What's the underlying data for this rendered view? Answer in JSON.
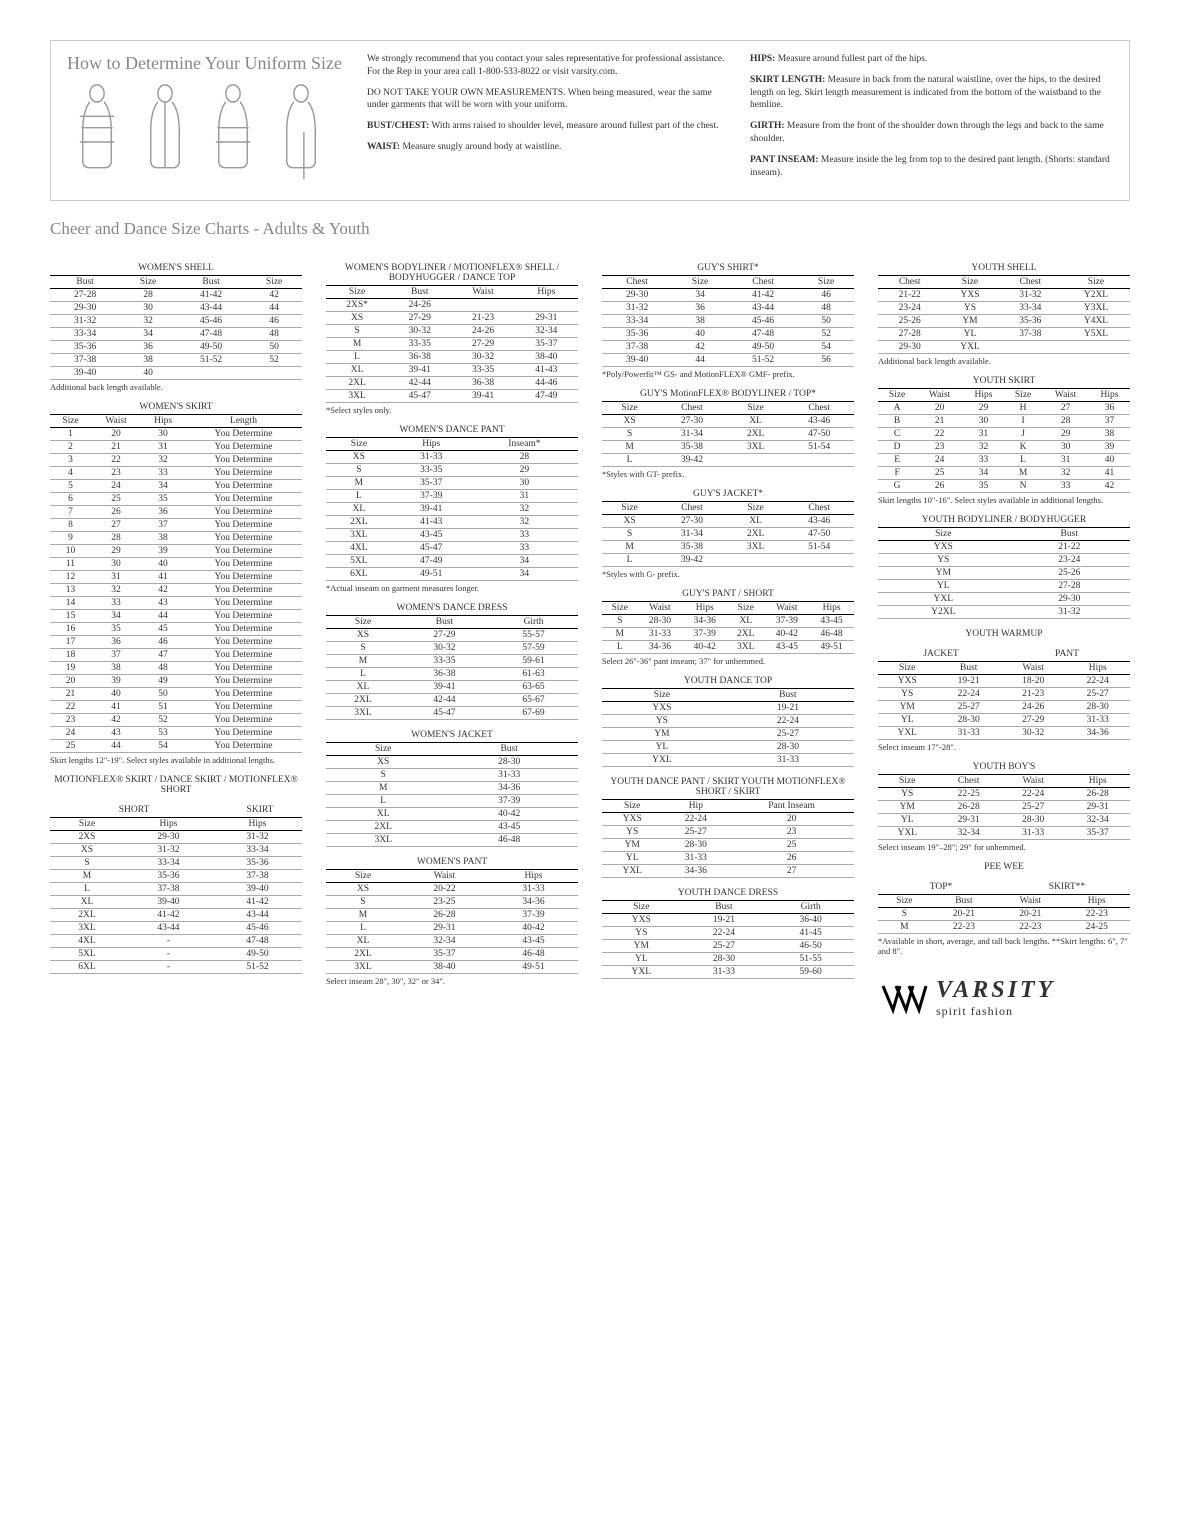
{
  "header": {
    "title": "How to Determine Your Uniform Size",
    "intro1": "We strongly recommend that you contact your sales representative for professional assistance. For the Rep in your area call 1-800-533-8022 or visit varsity.com.",
    "intro2": "DO NOT TAKE YOUR OWN MEASUREMENTS. When being measured, wear the same under garments that will be worn with your uniform.",
    "bust_label": "BUST/CHEST:",
    "bust": "With arms raised to shoulder level, measure around fullest part of the chest.",
    "waist_label": "WAIST:",
    "waist": "Measure snugly around body at waistline.",
    "hips_label": "HIPS:",
    "hips": "Measure around fullest part of the hips.",
    "skirt_label": "SKIRT LENGTH:",
    "skirt": "Measure in back from the natural waistline, over the hips, to the desired length on leg. Skirt length measurement is indicated from the bottom of the waistband to the hemline.",
    "girth_label": "GIRTH:",
    "girth": "Measure from the front of the shoulder down through the legs and back to the same shoulder.",
    "pant_label": "PANT INSEAM:",
    "pant": "Measure inside the leg from top to the desired pant length. (Shorts: standard inseam)."
  },
  "section_title": "Cheer and Dance Size Charts - Adults & Youth",
  "tables": {
    "womens_shell": {
      "title": "WOMEN'S SHELL",
      "cols": [
        "Bust",
        "Size",
        "Bust",
        "Size"
      ],
      "rows": [
        [
          "27-28",
          "28",
          "41-42",
          "42"
        ],
        [
          "29-30",
          "30",
          "43-44",
          "44"
        ],
        [
          "31-32",
          "32",
          "45-46",
          "46"
        ],
        [
          "33-34",
          "34",
          "47-48",
          "48"
        ],
        [
          "35-36",
          "36",
          "49-50",
          "50"
        ],
        [
          "37-38",
          "38",
          "51-52",
          "52"
        ],
        [
          "39-40",
          "40",
          "",
          ""
        ]
      ],
      "note": "Additional back length available."
    },
    "womens_skirt": {
      "title": "WOMEN'S SKIRT",
      "cols": [
        "Size",
        "Waist",
        "Hips",
        "Length"
      ],
      "rows": [
        [
          "1",
          "20",
          "30",
          "You Determine"
        ],
        [
          "2",
          "21",
          "31",
          "You Determine"
        ],
        [
          "3",
          "22",
          "32",
          "You Determine"
        ],
        [
          "4",
          "23",
          "33",
          "You Determine"
        ],
        [
          "5",
          "24",
          "34",
          "You Determine"
        ],
        [
          "6",
          "25",
          "35",
          "You Determine"
        ],
        [
          "7",
          "26",
          "36",
          "You Determine"
        ],
        [
          "8",
          "27",
          "37",
          "You Determine"
        ],
        [
          "9",
          "28",
          "38",
          "You Determine"
        ],
        [
          "10",
          "29",
          "39",
          "You Determine"
        ],
        [
          "11",
          "30",
          "40",
          "You Determine"
        ],
        [
          "12",
          "31",
          "41",
          "You Determine"
        ],
        [
          "13",
          "32",
          "42",
          "You Determine"
        ],
        [
          "14",
          "33",
          "43",
          "You Determine"
        ],
        [
          "15",
          "34",
          "44",
          "You Determine"
        ],
        [
          "16",
          "35",
          "45",
          "You Determine"
        ],
        [
          "17",
          "36",
          "46",
          "You Determine"
        ],
        [
          "18",
          "37",
          "47",
          "You Determine"
        ],
        [
          "19",
          "38",
          "48",
          "You Determine"
        ],
        [
          "20",
          "39",
          "49",
          "You Determine"
        ],
        [
          "21",
          "40",
          "50",
          "You Determine"
        ],
        [
          "22",
          "41",
          "51",
          "You Determine"
        ],
        [
          "23",
          "42",
          "52",
          "You Determine"
        ],
        [
          "24",
          "43",
          "53",
          "You Determine"
        ],
        [
          "25",
          "44",
          "54",
          "You Determine"
        ]
      ],
      "note": "Skirt lengths 12\"-19\". Select styles available in additional lengths."
    },
    "motionflex_skirt": {
      "title": "MOTIONFLEX® SKIRT / DANCE SKIRT / MOTIONFLEX® SHORT",
      "sub_left": "SHORT",
      "sub_right": "SKIRT",
      "cols": [
        "Size",
        "Hips",
        "Hips"
      ],
      "rows": [
        [
          "2XS",
          "29-30",
          "31-32"
        ],
        [
          "XS",
          "31-32",
          "33-34"
        ],
        [
          "S",
          "33-34",
          "35-36"
        ],
        [
          "M",
          "35-36",
          "37-38"
        ],
        [
          "L",
          "37-38",
          "39-40"
        ],
        [
          "XL",
          "39-40",
          "41-42"
        ],
        [
          "2XL",
          "41-42",
          "43-44"
        ],
        [
          "3XL",
          "43-44",
          "45-46"
        ],
        [
          "4XL",
          "-",
          "47-48"
        ],
        [
          "5XL",
          "-",
          "49-50"
        ],
        [
          "6XL",
          "-",
          "51-52"
        ]
      ]
    },
    "womens_bodyliner": {
      "title": "WOMEN'S BODYLINER / MOTIONFLEX® SHELL / BODYHUGGER / DANCE TOP",
      "cols": [
        "Size",
        "Bust",
        "Waist",
        "Hips"
      ],
      "rows": [
        [
          "2XS*",
          "24-26",
          "",
          ""
        ],
        [
          "XS",
          "27-29",
          "21-23",
          "29-31"
        ],
        [
          "S",
          "30-32",
          "24-26",
          "32-34"
        ],
        [
          "M",
          "33-35",
          "27-29",
          "35-37"
        ],
        [
          "L",
          "36-38",
          "30-32",
          "38-40"
        ],
        [
          "XL",
          "39-41",
          "33-35",
          "41-43"
        ],
        [
          "2XL",
          "42-44",
          "36-38",
          "44-46"
        ],
        [
          "3XL",
          "45-47",
          "39-41",
          "47-49"
        ]
      ],
      "note": "*Select styles only."
    },
    "womens_dance_pant": {
      "title": "WOMEN'S DANCE PANT",
      "cols": [
        "Size",
        "Hips",
        "Inseam*"
      ],
      "rows": [
        [
          "XS",
          "31-33",
          "28"
        ],
        [
          "S",
          "33-35",
          "29"
        ],
        [
          "M",
          "35-37",
          "30"
        ],
        [
          "L",
          "37-39",
          "31"
        ],
        [
          "XL",
          "39-41",
          "32"
        ],
        [
          "2XL",
          "41-43",
          "32"
        ],
        [
          "3XL",
          "43-45",
          "33"
        ],
        [
          "4XL",
          "45-47",
          "33"
        ],
        [
          "5XL",
          "47-49",
          "34"
        ],
        [
          "6XL",
          "49-51",
          "34"
        ]
      ],
      "note": "*Actual inseam on garment measures longer."
    },
    "womens_dance_dress": {
      "title": "WOMEN'S DANCE DRESS",
      "cols": [
        "Size",
        "Bust",
        "Girth"
      ],
      "rows": [
        [
          "XS",
          "27-29",
          "55-57"
        ],
        [
          "S",
          "30-32",
          "57-59"
        ],
        [
          "M",
          "33-35",
          "59-61"
        ],
        [
          "L",
          "36-38",
          "61-63"
        ],
        [
          "XL",
          "39-41",
          "63-65"
        ],
        [
          "2XL",
          "42-44",
          "65-67"
        ],
        [
          "3XL",
          "45-47",
          "67-69"
        ]
      ]
    },
    "womens_jacket": {
      "title": "WOMEN'S JACKET",
      "cols": [
        "Size",
        "Bust"
      ],
      "rows": [
        [
          "XS",
          "28-30"
        ],
        [
          "S",
          "31-33"
        ],
        [
          "M",
          "34-36"
        ],
        [
          "L",
          "37-39"
        ],
        [
          "XL",
          "40-42"
        ],
        [
          "2XL",
          "43-45"
        ],
        [
          "3XL",
          "46-48"
        ]
      ]
    },
    "womens_pant": {
      "title": "WOMEN'S PANT",
      "cols": [
        "Size",
        "Waist",
        "Hips"
      ],
      "rows": [
        [
          "XS",
          "20-22",
          "31-33"
        ],
        [
          "S",
          "23-25",
          "34-36"
        ],
        [
          "M",
          "26-28",
          "37-39"
        ],
        [
          "L",
          "29-31",
          "40-42"
        ],
        [
          "XL",
          "32-34",
          "43-45"
        ],
        [
          "2XL",
          "35-37",
          "46-48"
        ],
        [
          "3XL",
          "38-40",
          "49-51"
        ]
      ],
      "note": "Select inseam 28\", 30\", 32\" or 34\"."
    },
    "guys_shirt": {
      "title": "GUY'S SHIRT*",
      "cols": [
        "Chest",
        "Size",
        "Chest",
        "Size"
      ],
      "rows": [
        [
          "29-30",
          "34",
          "41-42",
          "46"
        ],
        [
          "31-32",
          "36",
          "43-44",
          "48"
        ],
        [
          "33-34",
          "38",
          "45-46",
          "50"
        ],
        [
          "35-36",
          "40",
          "47-48",
          "52"
        ],
        [
          "37-38",
          "42",
          "49-50",
          "54"
        ],
        [
          "39-40",
          "44",
          "51-52",
          "56"
        ]
      ],
      "note": "*Poly/Powerfit™ GS- and MotionFLEX® GMF- prefix."
    },
    "guys_bodyliner": {
      "title": "GUY'S MotionFLEX® BODYLINER / TOP*",
      "cols": [
        "Size",
        "Chest",
        "Size",
        "Chest"
      ],
      "rows": [
        [
          "XS",
          "27-30",
          "XL",
          "43-46"
        ],
        [
          "S",
          "31-34",
          "2XL",
          "47-50"
        ],
        [
          "M",
          "35-38",
          "3XL",
          "51-54"
        ],
        [
          "L",
          "39-42",
          "",
          ""
        ]
      ],
      "note": "*Styles with GT- prefix."
    },
    "guys_jacket": {
      "title": "GUY'S JACKET*",
      "cols": [
        "Size",
        "Chest",
        "Size",
        "Chest"
      ],
      "rows": [
        [
          "XS",
          "27-30",
          "XL",
          "43-46"
        ],
        [
          "S",
          "31-34",
          "2XL",
          "47-50"
        ],
        [
          "M",
          "35-38",
          "3XL",
          "51-54"
        ],
        [
          "L",
          "39-42",
          "",
          ""
        ]
      ],
      "note": "*Styles with G- prefix."
    },
    "guys_pant": {
      "title": "GUY'S PANT / SHORT",
      "cols": [
        "Size",
        "Waist",
        "Hips",
        "Size",
        "Waist",
        "Hips"
      ],
      "rows": [
        [
          "S",
          "28-30",
          "34-36",
          "XL",
          "37-39",
          "43-45"
        ],
        [
          "M",
          "31-33",
          "37-39",
          "2XL",
          "40-42",
          "46-48"
        ],
        [
          "L",
          "34-36",
          "40-42",
          "3XL",
          "43-45",
          "49-51"
        ]
      ],
      "note": "Select 26\"-36\" pant inseam; 37\" for unhemmed."
    },
    "youth_dance_top": {
      "title": "YOUTH DANCE TOP",
      "cols": [
        "Size",
        "Bust"
      ],
      "rows": [
        [
          "YXS",
          "19-21"
        ],
        [
          "YS",
          "22-24"
        ],
        [
          "YM",
          "25-27"
        ],
        [
          "YL",
          "28-30"
        ],
        [
          "YXL",
          "31-33"
        ]
      ]
    },
    "youth_dance_pant": {
      "title": "YOUTH DANCE PANT / SKIRT YOUTH MOTIONFLEX® SHORT / SKIRT",
      "cols": [
        "Size",
        "Hip",
        "Pant Inseam"
      ],
      "rows": [
        [
          "YXS",
          "22-24",
          "20"
        ],
        [
          "YS",
          "25-27",
          "23"
        ],
        [
          "YM",
          "28-30",
          "25"
        ],
        [
          "YL",
          "31-33",
          "26"
        ],
        [
          "YXL",
          "34-36",
          "27"
        ]
      ]
    },
    "youth_dance_dress": {
      "title": "YOUTH DANCE DRESS",
      "cols": [
        "Size",
        "Bust",
        "Girth"
      ],
      "rows": [
        [
          "YXS",
          "19-21",
          "36-40"
        ],
        [
          "YS",
          "22-24",
          "41-45"
        ],
        [
          "YM",
          "25-27",
          "46-50"
        ],
        [
          "YL",
          "28-30",
          "51-55"
        ],
        [
          "YXL",
          "31-33",
          "59-60"
        ]
      ]
    },
    "youth_shell": {
      "title": "YOUTH SHELL",
      "cols": [
        "Chest",
        "Size",
        "Chest",
        "Size"
      ],
      "rows": [
        [
          "21-22",
          "YXS",
          "31-32",
          "Y2XL"
        ],
        [
          "23-24",
          "YS",
          "33-34",
          "Y3XL"
        ],
        [
          "25-26",
          "YM",
          "35-36",
          "Y4XL"
        ],
        [
          "27-28",
          "YL",
          "37-38",
          "Y5XL"
        ],
        [
          "29-30",
          "YXL",
          "",
          ""
        ]
      ],
      "note": "Additional back length available."
    },
    "youth_skirt": {
      "title": "YOUTH SKIRT",
      "cols": [
        "Size",
        "Waist",
        "Hips",
        "Size",
        "Waist",
        "Hips"
      ],
      "rows": [
        [
          "A",
          "20",
          "29",
          "H",
          "27",
          "36"
        ],
        [
          "B",
          "21",
          "30",
          "I",
          "28",
          "37"
        ],
        [
          "C",
          "22",
          "31",
          "J",
          "29",
          "38"
        ],
        [
          "D",
          "23",
          "32",
          "K",
          "30",
          "39"
        ],
        [
          "E",
          "24",
          "33",
          "L",
          "31",
          "40"
        ],
        [
          "F",
          "25",
          "34",
          "M",
          "32",
          "41"
        ],
        [
          "G",
          "26",
          "35",
          "N",
          "33",
          "42"
        ]
      ],
      "note": "Skirt lengths 10\"-16\". Select styles available in additional lengths."
    },
    "youth_bodyliner": {
      "title": "YOUTH BODYLINER / BODYHUGGER",
      "cols": [
        "Size",
        "Bust"
      ],
      "rows": [
        [
          "YXS",
          "21-22"
        ],
        [
          "YS",
          "23-24"
        ],
        [
          "YM",
          "25-26"
        ],
        [
          "YL",
          "27-28"
        ],
        [
          "YXL",
          "29-30"
        ],
        [
          "Y2XL",
          "31-32"
        ]
      ]
    },
    "youth_warmup": {
      "title": "YOUTH WARMUP",
      "sub_left": "JACKET",
      "sub_right": "PANT",
      "cols": [
        "Size",
        "Bust",
        "Waist",
        "Hips"
      ],
      "rows": [
        [
          "YXS",
          "19-21",
          "18-20",
          "22-24"
        ],
        [
          "YS",
          "22-24",
          "21-23",
          "25-27"
        ],
        [
          "YM",
          "25-27",
          "24-26",
          "28-30"
        ],
        [
          "YL",
          "28-30",
          "27-29",
          "31-33"
        ],
        [
          "YXL",
          "31-33",
          "30-32",
          "34-36"
        ]
      ],
      "note": "Select inseam 17\"-28\"."
    },
    "youth_boys": {
      "title": "YOUTH BOY'S",
      "cols": [
        "Size",
        "Chest",
        "Waist",
        "Hips"
      ],
      "rows": [
        [
          "YS",
          "22-25",
          "22-24",
          "26-28"
        ],
        [
          "YM",
          "26-28",
          "25-27",
          "29-31"
        ],
        [
          "YL",
          "29-31",
          "28-30",
          "32-34"
        ],
        [
          "YXL",
          "32-34",
          "31-33",
          "35-37"
        ]
      ],
      "note": "Select inseam 19\"–28\"; 29\" for unhemmed."
    },
    "pee_wee": {
      "title": "PEE WEE",
      "sub_left": "TOP*",
      "sub_right": "SKIRT**",
      "cols": [
        "Size",
        "Bust",
        "Waist",
        "Hips"
      ],
      "rows": [
        [
          "S",
          "20-21",
          "20-21",
          "22-23"
        ],
        [
          "M",
          "22-23",
          "22-23",
          "24-25"
        ]
      ],
      "note": "*Available in short, average, and tall back lengths. **Skirt lengths: 6\", 7\" and 8\"."
    }
  },
  "logo": {
    "big": "VARSITY",
    "small": "spirit fashion"
  }
}
